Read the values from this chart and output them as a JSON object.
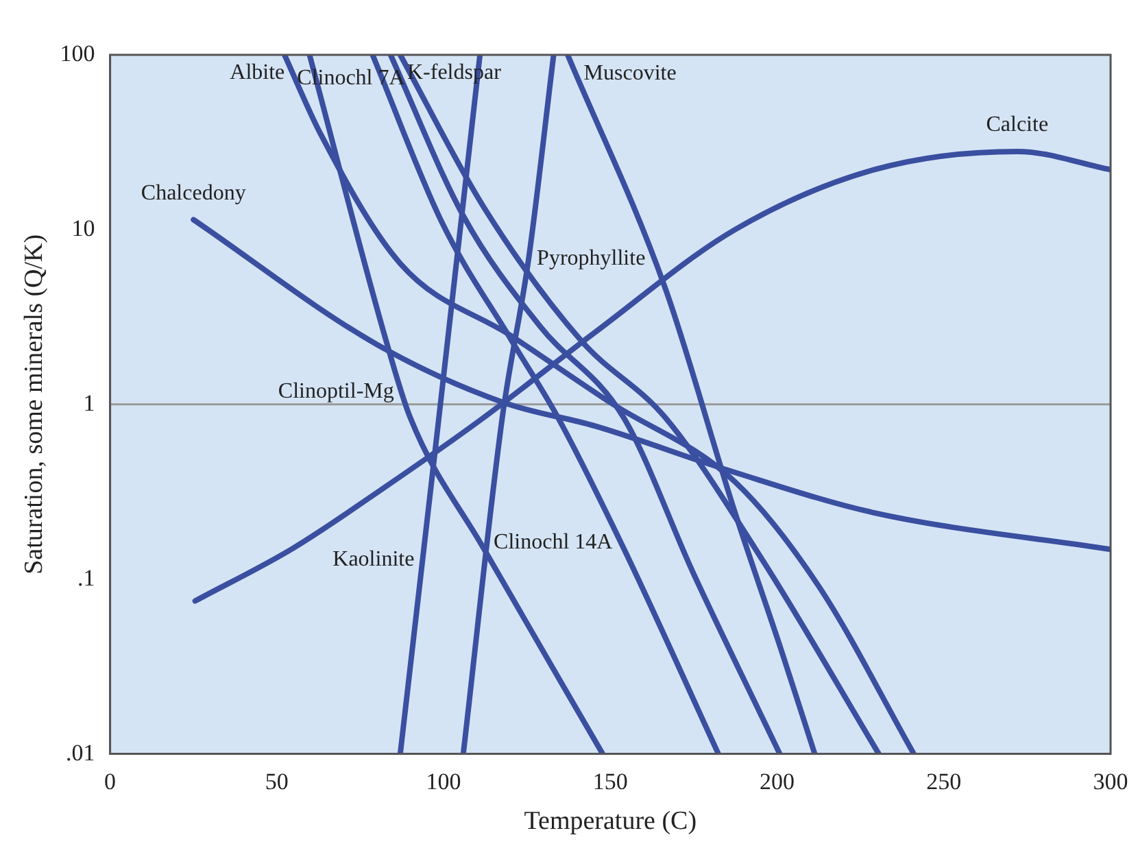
{
  "chart_data": {
    "type": "line",
    "xlabel": "Temperature (C)",
    "ylabel": "Saturation, some minerals (Q/K)",
    "log": "y",
    "grid": false,
    "legend": false,
    "marker": "none",
    "line_style": "solid",
    "xlim": [
      0,
      300
    ],
    "xticks": [
      0,
      50,
      100,
      150,
      200,
      250,
      300
    ],
    "ylim": [
      0.01,
      100
    ],
    "yticks": [
      {
        "value": 0.01,
        "label": ".01"
      },
      {
        "value": 0.1,
        "label": ".1"
      },
      1,
      10,
      100
    ],
    "ref_lines": [
      {
        "axis": "y",
        "value": 1,
        "label": null,
        "color": "#9a9a9a"
      }
    ],
    "series": [
      {
        "name": "Chalcedony",
        "color": "#3a4fa0",
        "x": [
          25,
          80,
          117.6,
          145.6,
          187,
          229,
          300
        ],
        "values": [
          11.4,
          2.2,
          1.03,
          0.75,
          0.41,
          0.24,
          0.148
        ]
      },
      {
        "name": "Calcite",
        "color": "#3a4fa0",
        "x": [
          25.5,
          54.8,
          82.8,
          110.9,
          145.6,
          187.4,
          229,
          272,
          300
        ],
        "values": [
          0.075,
          0.15,
          0.34,
          0.81,
          2.6,
          10,
          22,
          28,
          22
        ]
      },
      {
        "name": "Albite",
        "color": "#3a4fa0",
        "x": [
          52.3,
          63.2,
          87,
          120.5,
          149.8,
          187.4,
          212.5,
          241
        ],
        "values": [
          100,
          35,
          6.4,
          2.45,
          1.03,
          0.36,
          0.091,
          0.01
        ]
      },
      {
        "name": "Clinoptil-Mg",
        "color": "#3a4fa0",
        "x": [
          59.8,
          82.8,
          90,
          112,
          147.7
        ],
        "values": [
          100,
          2.3,
          0.84,
          0.15,
          0.01
        ]
      },
      {
        "name": "Clinochl 14A",
        "color": "#3a4fa0",
        "x": [
          78.7,
          99.6,
          120.5,
          134.3,
          154,
          182.4
        ],
        "values": [
          100,
          10.9,
          2.3,
          0.84,
          0.15,
          0.01
        ]
      },
      {
        "name": "K-feldspar",
        "color": "#3a4fa0",
        "x": [
          84.1,
          105.9,
          128.9,
          154,
          175,
          200.8
        ],
        "values": [
          100,
          12,
          2.8,
          0.84,
          0.107,
          0.01
        ]
      },
      {
        "name": "Clinochl 7A",
        "color": "#3a4fa0",
        "x": [
          87,
          112.1,
          141.4,
          166.5,
          195.8,
          230.5
        ],
        "values": [
          100,
          13.4,
          2.3,
          0.84,
          0.127,
          0.01
        ]
      },
      {
        "name": "Muscovite",
        "color": "#3a4fa0",
        "x": [
          137.2,
          166.5,
          187.4,
          201.3,
          211.3
        ],
        "values": [
          100,
          4.6,
          0.24,
          0.039,
          0.01
        ]
      },
      {
        "name": "Kaolinite",
        "color": "#3a4fa0",
        "x": [
          87,
          98.3,
          110.9
        ],
        "values": [
          0.01,
          0.75,
          100
        ]
      },
      {
        "name": "Pyrophyllite",
        "color": "#3a4fa0",
        "x": [
          105.9,
          117.6,
          125.5,
          133
        ],
        "values": [
          0.01,
          0.84,
          6.8,
          100
        ]
      }
    ]
  }
}
